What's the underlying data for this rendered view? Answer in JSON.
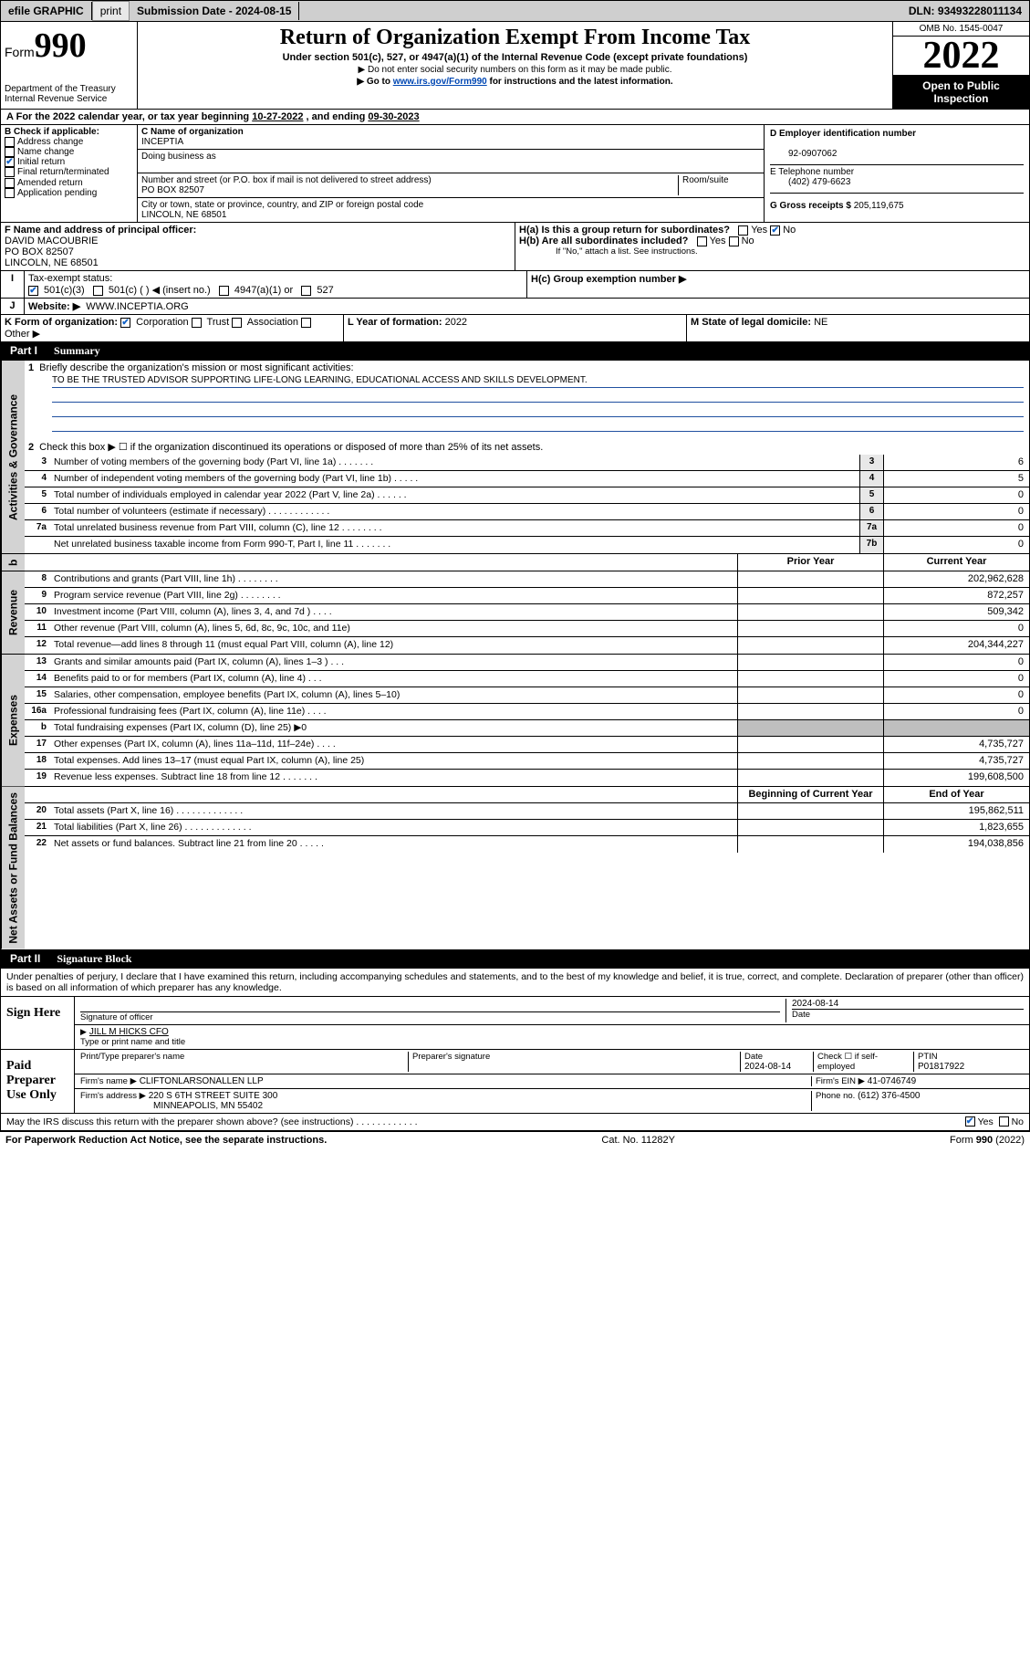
{
  "topbar": {
    "efile": "efile GRAPHIC",
    "print": "print",
    "subdate_lbl": "Submission Date - ",
    "subdate": "2024-08-15",
    "dln_lbl": "DLN: ",
    "dln": "93493228011134"
  },
  "hdr": {
    "form_lbl": "Form",
    "form_no": "990",
    "dept": "Department of the Treasury\nInternal Revenue Service",
    "title": "Return of Organization Exempt From Income Tax",
    "sub": "Under section 501(c), 527, or 4947(a)(1) of the Internal Revenue Code (except private foundations)",
    "note1": "▶ Do not enter social security numbers on this form as it may be made public.",
    "note2_pre": "▶ Go to ",
    "note2_link": "www.irs.gov/Form990",
    "note2_post": " for instructions and the latest information.",
    "omb": "OMB No. 1545-0047",
    "year": "2022",
    "open": "Open to Public Inspection"
  },
  "A": {
    "text": "For the 2022 calendar year, or tax year beginning ",
    "begin": "10-27-2022",
    "mid": " , and ending ",
    "end": "09-30-2023"
  },
  "B": {
    "hdr": "B Check if applicable:",
    "opts": [
      "Address change",
      "Name change",
      "Initial return",
      "Final return/terminated",
      "Amended return",
      "Application pending"
    ],
    "checked_idx": 2
  },
  "C": {
    "name_lbl": "C Name of organization",
    "name": "INCEPTIA",
    "dba_lbl": "Doing business as",
    "addr_lbl": "Number and street (or P.O. box if mail is not delivered to street address)",
    "room_lbl": "Room/suite",
    "addr": "PO BOX 82507",
    "city_lbl": "City or town, state or province, country, and ZIP or foreign postal code",
    "city": "LINCOLN, NE  68501"
  },
  "D": {
    "lbl": "D Employer identification number",
    "val": "92-0907062"
  },
  "E": {
    "lbl": "E Telephone number",
    "val": "(402) 479-6623"
  },
  "G": {
    "lbl": "G Gross receipts $",
    "val": "205,119,675"
  },
  "F": {
    "lbl": "F  Name and address of principal officer:",
    "name": "DAVID MACOUBRIE",
    "addr": "PO BOX 82507",
    "city": "LINCOLN, NE  68501"
  },
  "H": {
    "a": "H(a)  Is this a group return for subordinates?",
    "b": "H(b)  Are all subordinates included?",
    "b_note": "If \"No,\" attach a list. See instructions.",
    "c": "H(c)  Group exemption number ▶",
    "yes": "Yes",
    "no": "No"
  },
  "I": {
    "lbl": "Tax-exempt status:",
    "opts": [
      "501(c)(3)",
      "501(c) (   ) ◀ (insert no.)",
      "4947(a)(1) or",
      "527"
    ],
    "checked_idx": 0
  },
  "J": {
    "lbl": "Website: ▶",
    "val": "WWW.INCEPTIA.ORG"
  },
  "K": {
    "lbl": "K Form of organization:",
    "opts": [
      "Corporation",
      "Trust",
      "Association",
      "Other ▶"
    ],
    "checked_idx": 0
  },
  "L": {
    "lbl": "L Year of formation:",
    "val": "2022"
  },
  "M": {
    "lbl": "M State of legal domicile:",
    "val": "NE"
  },
  "part1": {
    "pt": "Part I",
    "ttl": "Summary"
  },
  "s1": {
    "q1": "Briefly describe the organization's mission or most significant activities:",
    "mission": "TO BE THE TRUSTED ADVISOR SUPPORTING LIFE-LONG LEARNING, EDUCATIONAL ACCESS AND SKILLS DEVELOPMENT.",
    "q2": "Check this box ▶ ☐  if the organization discontinued its operations or disposed of more than 25% of its net assets.",
    "rows": [
      {
        "n": "3",
        "d": "Number of voting members of the governing body (Part VI, line 1a)   .    .    .    .    .    .    .",
        "cn": "3",
        "v": "6"
      },
      {
        "n": "4",
        "d": "Number of independent voting members of the governing body (Part VI, line 1b)   .    .    .    .    .",
        "cn": "4",
        "v": "5"
      },
      {
        "n": "5",
        "d": "Total number of individuals employed in calendar year 2022 (Part V, line 2a)   .    .    .    .    .    .",
        "cn": "5",
        "v": "0"
      },
      {
        "n": "6",
        "d": "Total number of volunteers (estimate if necessary)   .    .    .    .    .    .    .    .    .    .    .    .",
        "cn": "6",
        "v": "0"
      },
      {
        "n": "7a",
        "d": "Total unrelated business revenue from Part VIII, column (C), line 12   .    .    .    .    .    .    .    .",
        "cn": "7a",
        "v": "0"
      },
      {
        "n": "",
        "d": "Net unrelated business taxable income from Form 990-T, Part I, line 11   .    .    .    .    .    .    .",
        "cn": "7b",
        "v": "0"
      }
    ]
  },
  "colhdr": {
    "prior": "Prior Year",
    "current": "Current Year"
  },
  "rev": {
    "side": "Revenue",
    "rows": [
      {
        "n": "8",
        "d": "Contributions and grants (Part VIII, line 1h)    .    .    .    .    .    .    .    .",
        "p": "",
        "c": "202,962,628"
      },
      {
        "n": "9",
        "d": "Program service revenue (Part VIII, line 2g)    .    .    .    .    .    .    .    .",
        "p": "",
        "c": "872,257"
      },
      {
        "n": "10",
        "d": "Investment income (Part VIII, column (A), lines 3, 4, and 7d )    .    .    .    .",
        "p": "",
        "c": "509,342"
      },
      {
        "n": "11",
        "d": "Other revenue (Part VIII, column (A), lines 5, 6d, 8c, 9c, 10c, and 11e)",
        "p": "",
        "c": "0"
      },
      {
        "n": "12",
        "d": "Total revenue—add lines 8 through 11 (must equal Part VIII, column (A), line 12)",
        "p": "",
        "c": "204,344,227"
      }
    ]
  },
  "exp": {
    "side": "Expenses",
    "rows": [
      {
        "n": "13",
        "d": "Grants and similar amounts paid (Part IX, column (A), lines 1–3 )    .    .    .",
        "p": "",
        "c": "0"
      },
      {
        "n": "14",
        "d": "Benefits paid to or for members (Part IX, column (A), line 4)    .    .    .",
        "p": "",
        "c": "0"
      },
      {
        "n": "15",
        "d": "Salaries, other compensation, employee benefits (Part IX, column (A), lines 5–10)",
        "p": "",
        "c": "0"
      },
      {
        "n": "16a",
        "d": "Professional fundraising fees (Part IX, column (A), line 11e)    .    .    .    .",
        "p": "",
        "c": "0"
      },
      {
        "n": "b",
        "d": "Total fundraising expenses (Part IX, column (D), line 25) ▶0",
        "p": "shade",
        "c": "shade"
      },
      {
        "n": "17",
        "d": "Other expenses (Part IX, column (A), lines 11a–11d, 11f–24e)    .    .    .    .",
        "p": "",
        "c": "4,735,727"
      },
      {
        "n": "18",
        "d": "Total expenses. Add lines 13–17 (must equal Part IX, column (A), line 25)",
        "p": "",
        "c": "4,735,727"
      },
      {
        "n": "19",
        "d": "Revenue less expenses. Subtract line 18 from line 12    .    .    .    .    .    .    .",
        "p": "",
        "c": "199,608,500"
      }
    ]
  },
  "nethdr": {
    "begin": "Beginning of Current Year",
    "end": "End of Year"
  },
  "net": {
    "side": "Net Assets or Fund Balances",
    "rows": [
      {
        "n": "20",
        "d": "Total assets (Part X, line 16)    .    .    .    .    .    .    .    .    .    .    .    .    .",
        "p": "",
        "c": "195,862,511"
      },
      {
        "n": "21",
        "d": "Total liabilities (Part X, line 26)   .    .    .    .    .    .    .    .    .    .    .    .    .",
        "p": "",
        "c": "1,823,655"
      },
      {
        "n": "22",
        "d": "Net assets or fund balances. Subtract line 21 from line 20    .    .    .    .    .",
        "p": "",
        "c": "194,038,856"
      }
    ]
  },
  "part2": {
    "pt": "Part II",
    "ttl": "Signature Block"
  },
  "sig": {
    "decl": "Under penalties of perjury, I declare that I have examined this return, including accompanying schedules and statements, and to the best of my knowledge and belief, it is true, correct, and complete. Declaration of preparer (other than officer) is based on all information of which preparer has any knowledge.",
    "sign_here": "Sign Here",
    "sig_officer": "Signature of officer",
    "sig_date": "2024-08-14",
    "date_lbl": "Date",
    "name": "JILL M HICKS  CFO",
    "name_lbl": "Type or print name and title",
    "paid": "Paid Preparer Use Only",
    "prep_name_lbl": "Print/Type preparer's name",
    "prep_sig_lbl": "Preparer's signature",
    "prep_date_lbl": "Date",
    "prep_date": "2024-08-14",
    "check_lbl": "Check ☐ if self-employed",
    "ptin_lbl": "PTIN",
    "ptin": "P01817922",
    "firm_name_lbl": "Firm's name    ▶",
    "firm_name": "CLIFTONLARSONALLEN LLP",
    "firm_ein_lbl": "Firm's EIN ▶",
    "firm_ein": "41-0746749",
    "firm_addr_lbl": "Firm's address ▶",
    "firm_addr": "220 S 6TH STREET SUITE 300",
    "firm_city": "MINNEAPOLIS, MN  55402",
    "phone_lbl": "Phone no.",
    "phone": "(612) 376-4500",
    "discuss": "May the IRS discuss this return with the preparer shown above? (see instructions)    .    .    .    .    .    .    .    .    .    .    .    .",
    "yes": "Yes",
    "no": "No"
  },
  "footer": {
    "pra": "For Paperwork Reduction Act Notice, see the separate instructions.",
    "cat": "Cat. No. 11282Y",
    "form": "Form 990 (2022)"
  },
  "colors": {
    "link": "#0047b3",
    "chk": "#1464c8",
    "sideband": "#d3d3d3",
    "shade": "#bfbfbf",
    "ruleline": "#2050a0"
  }
}
